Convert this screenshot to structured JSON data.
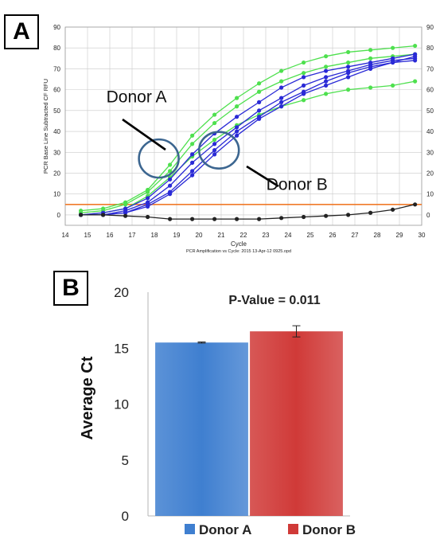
{
  "panels": {
    "a_label": "A",
    "b_label": "B"
  },
  "chart_data": [
    {
      "type": "line",
      "title": "",
      "xlabel": "Cycle",
      "ylabel": "PCR Base Line Subtracted CF RFU",
      "footer": "PCR Amplification vs Cycle: 2015 13-Apr-12 0925.opd",
      "xlim": [
        14,
        30
      ],
      "ylim": [
        -5,
        90
      ],
      "x_ticks": [
        "14",
        "15",
        "16",
        "17",
        "18",
        "19",
        "20",
        "21",
        "22",
        "23",
        "24",
        "25",
        "26",
        "27",
        "28",
        "29",
        "30"
      ],
      "y_ticks": [
        "0",
        "10",
        "20",
        "30",
        "40",
        "50",
        "60",
        "70",
        "80",
        "90"
      ],
      "grid": true,
      "threshold": 5,
      "x": [
        14.7,
        15.7,
        16.7,
        17.7,
        18.7,
        19.7,
        20.7,
        21.7,
        22.7,
        23.7,
        24.7,
        25.7,
        26.7,
        27.7,
        28.7,
        29.7
      ],
      "series": [
        {
          "group": "Donor A",
          "color": "#4ee04e",
          "values": [
            2,
            3,
            6,
            12,
            24,
            38,
            48,
            56,
            63,
            69,
            73,
            76,
            78,
            79,
            80,
            81
          ]
        },
        {
          "group": "Donor A",
          "color": "#4ee04e",
          "values": [
            1,
            2,
            5,
            11,
            21,
            34,
            44,
            52,
            59,
            64,
            68,
            71,
            73,
            75,
            76,
            77
          ]
        },
        {
          "group": "Donor A",
          "color": "#4ee04e",
          "values": [
            0,
            1,
            3,
            9,
            18,
            28,
            36,
            43,
            48,
            52,
            55,
            58,
            60,
            61,
            62,
            64
          ]
        },
        {
          "group": "Donor B",
          "color": "#2a2ad6",
          "values": [
            0,
            1,
            3,
            8,
            17,
            29,
            39,
            47,
            54,
            61,
            66,
            69,
            71,
            73,
            75,
            77
          ]
        },
        {
          "group": "Donor B",
          "color": "#2a2ad6",
          "values": [
            0,
            0,
            2,
            6,
            14,
            25,
            34,
            42,
            50,
            56,
            62,
            66,
            69,
            72,
            74,
            75
          ]
        },
        {
          "group": "Donor B",
          "color": "#2a2ad6",
          "values": [
            0,
            0,
            1,
            5,
            11,
            21,
            31,
            40,
            47,
            54,
            59,
            64,
            68,
            71,
            73,
            76
          ]
        },
        {
          "group": "Donor B",
          "color": "#2a2ad6",
          "values": [
            0,
            0,
            1,
            4,
            10,
            19,
            29,
            38,
            46,
            52,
            58,
            62,
            66,
            70,
            73,
            74
          ]
        },
        {
          "group": "control",
          "color": "#222222",
          "values": [
            0,
            0,
            -0.5,
            -1,
            -2,
            -2,
            -2,
            -2,
            -2,
            -1.5,
            -1,
            -0.5,
            0,
            1,
            2.5,
            5
          ]
        }
      ],
      "annotations": [
        {
          "text": "Donor A",
          "x": 17.2,
          "y": 54
        },
        {
          "text": "Donor B",
          "x": 24.4,
          "y": 12
        }
      ],
      "circles": [
        {
          "x": 18.2,
          "y": 27
        },
        {
          "x": 20.9,
          "y": 31
        }
      ]
    },
    {
      "type": "bar",
      "title": "P-Value = 0.011",
      "xlabel": "",
      "ylabel": "Average Ct",
      "categories": [
        "Donor A",
        "Donor B"
      ],
      "values": [
        15.5,
        16.5
      ],
      "errors": [
        0.05,
        0.5
      ],
      "colors": [
        "#3f7fd0",
        "#d03a38"
      ],
      "ylim": [
        0,
        20
      ],
      "y_ticks": [
        "0",
        "5",
        "10",
        "15",
        "20"
      ],
      "legend_position": "bottom",
      "legend": [
        "Donor A",
        "Donor B"
      ]
    }
  ]
}
